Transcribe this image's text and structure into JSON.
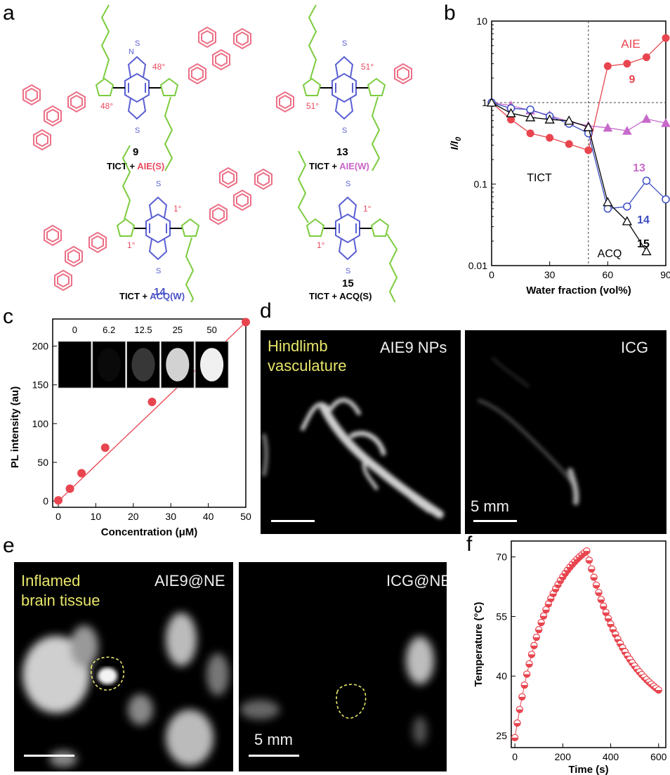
{
  "panels": {
    "a": "a",
    "b": "b",
    "c": "c",
    "d": "d",
    "e": "e",
    "f": "f"
  },
  "panel_a": {
    "molecules": [
      {
        "number": "9",
        "caption_prefix": "TICT + ",
        "caption_effect": "AIE(S)",
        "effect_color": "#e84a5f",
        "angle": "48°"
      },
      {
        "number": "13",
        "caption_prefix": "TICT + ",
        "caption_effect": "AIE(W)",
        "effect_color": "#c864c8",
        "angle": "51°"
      },
      {
        "number": "14",
        "caption_prefix": "TICT + ",
        "caption_effect": "ACQ(W)",
        "effect_color": "#4a52c8",
        "angle": "1°"
      },
      {
        "number": "15",
        "caption_prefix": "TICT + ",
        "caption_effect": "ACQ(S)",
        "effect_color": "#000000",
        "angle": "1°"
      }
    ],
    "atoms": {
      "n": "N",
      "s": "S"
    },
    "colors": {
      "triphenylamine": "#ec6f86",
      "thiophene": "#7ccc3e",
      "core": "#5a5fd2"
    }
  },
  "chart_data": [
    {
      "panel": "b",
      "type": "line",
      "xlabel": "Water fraction (vol%)",
      "ylabel": "I/I0",
      "x_ticks": [
        "0",
        "30",
        "60",
        "90"
      ],
      "y_ticks": [
        "0.01",
        "0.1",
        "1",
        "10"
      ],
      "xlim": [
        0,
        90
      ],
      "ylim": [
        0.01,
        10
      ],
      "y_scale": "log",
      "reference_lines": {
        "y": 1,
        "x": 50
      },
      "annotations": [
        "AIE",
        "TICT",
        "ACQ"
      ],
      "series": [
        {
          "name": "9",
          "color": "#e8454f",
          "marker": "filled-circle",
          "x": [
            0,
            10,
            20,
            30,
            40,
            50,
            60,
            70,
            80,
            90
          ],
          "y": [
            1.0,
            0.62,
            0.42,
            0.37,
            0.31,
            0.26,
            2.8,
            3.0,
            3.6,
            6.2
          ]
        },
        {
          "name": "13",
          "color": "#c66acb",
          "marker": "filled-triangle",
          "x": [
            0,
            10,
            20,
            30,
            40,
            50,
            60,
            70,
            80,
            90
          ],
          "y": [
            1.0,
            0.92,
            0.8,
            0.7,
            0.58,
            0.52,
            0.49,
            0.45,
            0.63,
            0.56
          ]
        },
        {
          "name": "14",
          "color": "#3c4ec2",
          "marker": "open-circle",
          "x": [
            0,
            10,
            20,
            30,
            40,
            50,
            60,
            70,
            80,
            90
          ],
          "y": [
            1.0,
            0.85,
            0.82,
            0.68,
            0.55,
            0.42,
            0.05,
            0.053,
            0.11,
            0.065
          ]
        },
        {
          "name": "15",
          "color": "#000000",
          "marker": "open-triangle",
          "x": [
            0,
            10,
            20,
            30,
            40,
            50,
            60,
            70,
            80
          ],
          "y": [
            1.0,
            0.74,
            0.66,
            0.62,
            0.6,
            0.5,
            0.06,
            0.035,
            0.015
          ]
        }
      ]
    },
    {
      "panel": "c",
      "type": "scatter",
      "xlabel": "Concentration (μM)",
      "ylabel": "PL intensity (au)",
      "x_ticks": [
        "0",
        "10",
        "20",
        "30",
        "40",
        "50"
      ],
      "y_ticks": [
        "0",
        "50",
        "100",
        "150",
        "200"
      ],
      "xlim": [
        0,
        50
      ],
      "ylim": [
        0,
        235
      ],
      "series": [
        {
          "color": "#e8454f",
          "x": [
            0,
            3.1,
            6.2,
            12.5,
            25,
            50
          ],
          "y": [
            1,
            16,
            36,
            69,
            128,
            231
          ]
        }
      ],
      "fit_line": {
        "x": [
          0,
          50
        ],
        "y": [
          0,
          231
        ]
      },
      "inset_labels": [
        "0",
        "6.2",
        "12.5",
        "25",
        "50"
      ],
      "inset_brightness": [
        0,
        0.05,
        0.35,
        0.85,
        1.0
      ]
    },
    {
      "panel": "f",
      "type": "scatter",
      "xlabel": "Time (s)",
      "ylabel": "Temperature (°C)",
      "x_ticks": [
        "0",
        "200",
        "400",
        "600"
      ],
      "y_ticks": [
        "25",
        "40",
        "55",
        "70"
      ],
      "xlim": [
        -15,
        630
      ],
      "ylim": [
        22,
        74
      ],
      "series": [
        {
          "color": "#e8454f",
          "marker": "half-filled-circle",
          "x": [
            0,
            300,
            600
          ],
          "y": [
            24.5,
            71.5,
            36.5
          ],
          "heating_tau_s": 140,
          "cooling_tau_s": 180
        }
      ]
    }
  ],
  "panel_d": {
    "left_label_yellow": [
      "Hindlimb",
      "vasculature"
    ],
    "left_label_white": "AIE9 NPs",
    "right_label_white": "ICG",
    "scale_label": "5 mm"
  },
  "panel_e": {
    "left_label_yellow": [
      "Inflamed",
      "brain tissue"
    ],
    "left_label_white": "AIE9@NE",
    "right_label_white": "ICG@NE",
    "scale_label": "5 mm"
  }
}
